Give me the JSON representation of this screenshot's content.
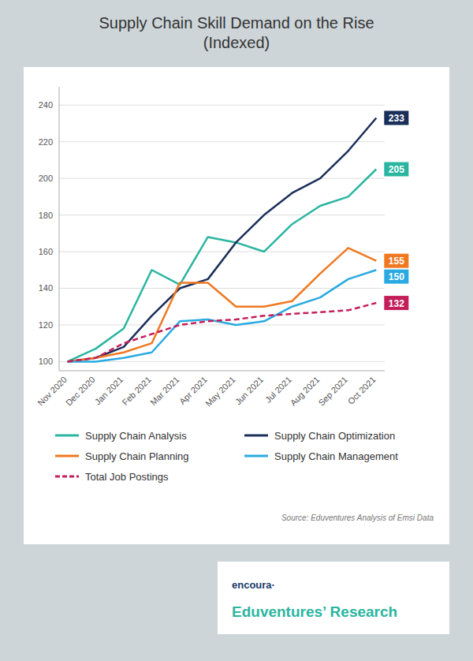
{
  "chart_data": {
    "type": "line",
    "title": "Supply Chain Skill Demand on the Rise\n(Indexed)",
    "categories": [
      "Nov 2020",
      "Dec 2020",
      "Jan 2021",
      "Feb 2021",
      "Mar 2021",
      "Apr 2021",
      "May 2021",
      "Jun 2021",
      "Jul 2021",
      "Aug 2021",
      "Sep 2021",
      "Oct 2021"
    ],
    "series": [
      {
        "name": "Supply Chain Analysis",
        "color": "#2ab5a0",
        "line_style": "solid",
        "values": [
          100,
          107,
          118,
          150,
          142,
          168,
          165,
          160,
          175,
          185,
          190,
          205
        ]
      },
      {
        "name": "Supply Chain Optimization",
        "color": "#1a2e5a",
        "line_style": "solid",
        "values": [
          100,
          102,
          108,
          125,
          140,
          145,
          165,
          180,
          192,
          200,
          215,
          233
        ]
      },
      {
        "name": "Supply Chain Planning",
        "color": "#f07820",
        "line_style": "solid",
        "values": [
          100,
          102,
          105,
          110,
          143,
          143,
          130,
          130,
          133,
          148,
          162,
          155
        ]
      },
      {
        "name": "Supply Chain Management",
        "color": "#29aae2",
        "line_style": "solid",
        "values": [
          100,
          100,
          102,
          105,
          122,
          123,
          120,
          122,
          130,
          135,
          145,
          150
        ]
      },
      {
        "name": "Total Job Postings",
        "color": "#c41e5a",
        "line_style": "dashed",
        "values": [
          100,
          102,
          110,
          115,
          120,
          122,
          123,
          125,
          126,
          127,
          128,
          132
        ]
      }
    ],
    "ylim": [
      95,
      250
    ],
    "yticks": [
      100,
      120,
      140,
      160,
      180,
      200,
      220,
      240
    ],
    "grid": true,
    "legend": "bottom",
    "data_labels": true,
    "annotations": [
      "Source: Eduventures Analysis of Emsi Data",
      "encoura·",
      "Eduventures’ Research"
    ]
  }
}
